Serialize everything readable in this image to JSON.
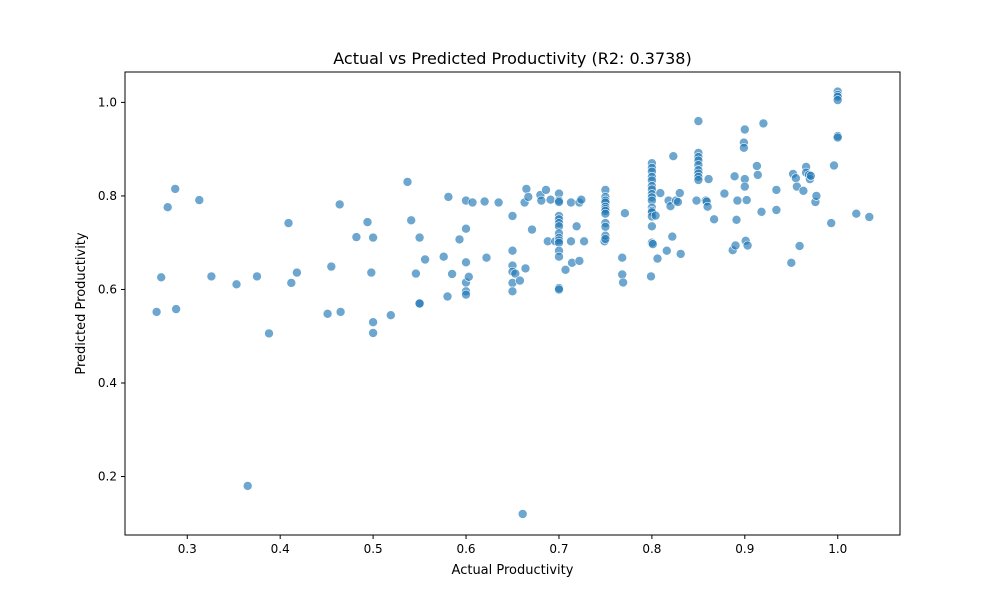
{
  "chart_data": {
    "type": "scatter",
    "title": "Actual vs Predicted Productivity (R2: 0.3738)",
    "xlabel": "Actual Productivity",
    "ylabel": "Predicted Productivity",
    "xlim": [
      0.233,
      1.067
    ],
    "ylim": [
      0.075,
      1.065
    ],
    "xticks": [
      0.3,
      0.4,
      0.5,
      0.6,
      0.7,
      0.8,
      0.9,
      1.0
    ],
    "xtick_labels": [
      "0.3",
      "0.4",
      "0.5",
      "0.6",
      "0.7",
      "0.8",
      "0.9",
      "1.0"
    ],
    "yticks": [
      0.2,
      0.4,
      0.6,
      0.8,
      1.0
    ],
    "ytick_labels": [
      "0.2",
      "0.4",
      "0.6",
      "0.8",
      "1.0"
    ],
    "grid": false,
    "marker_color": "#1f77b4",
    "marker_alpha": 0.65,
    "points": [
      [
        0.267,
        0.552
      ],
      [
        0.272,
        0.626
      ],
      [
        0.279,
        0.776
      ],
      [
        0.287,
        0.815
      ],
      [
        0.288,
        0.558
      ],
      [
        0.313,
        0.791
      ],
      [
        0.326,
        0.628
      ],
      [
        0.353,
        0.611
      ],
      [
        0.365,
        0.18
      ],
      [
        0.375,
        0.628
      ],
      [
        0.388,
        0.506
      ],
      [
        0.409,
        0.742
      ],
      [
        0.412,
        0.614
      ],
      [
        0.418,
        0.636
      ],
      [
        0.451,
        0.548
      ],
      [
        0.455,
        0.649
      ],
      [
        0.464,
        0.782
      ],
      [
        0.465,
        0.552
      ],
      [
        0.482,
        0.712
      ],
      [
        0.494,
        0.744
      ],
      [
        0.498,
        0.636
      ],
      [
        0.5,
        0.711
      ],
      [
        0.5,
        0.53
      ],
      [
        0.5,
        0.507
      ],
      [
        0.519,
        0.545
      ],
      [
        0.537,
        0.83
      ],
      [
        0.541,
        0.748
      ],
      [
        0.546,
        0.634
      ],
      [
        0.55,
        0.711
      ],
      [
        0.55,
        0.57
      ],
      [
        0.55,
        0.57
      ],
      [
        0.556,
        0.664
      ],
      [
        0.576,
        0.67
      ],
      [
        0.58,
        0.585
      ],
      [
        0.581,
        0.798
      ],
      [
        0.585,
        0.633
      ],
      [
        0.593,
        0.707
      ],
      [
        0.6,
        0.79
      ],
      [
        0.6,
        0.73
      ],
      [
        0.6,
        0.658
      ],
      [
        0.6,
        0.615
      ],
      [
        0.6,
        0.596
      ],
      [
        0.6,
        0.589
      ],
      [
        0.603,
        0.627
      ],
      [
        0.607,
        0.786
      ],
      [
        0.62,
        0.788
      ],
      [
        0.622,
        0.668
      ],
      [
        0.635,
        0.786
      ],
      [
        0.65,
        0.757
      ],
      [
        0.65,
        0.683
      ],
      [
        0.65,
        0.651
      ],
      [
        0.65,
        0.638
      ],
      [
        0.65,
        0.614
      ],
      [
        0.65,
        0.596
      ],
      [
        0.653,
        0.634
      ],
      [
        0.658,
        0.619
      ],
      [
        0.661,
        0.12
      ],
      [
        0.663,
        0.786
      ],
      [
        0.664,
        0.645
      ],
      [
        0.665,
        0.815
      ],
      [
        0.667,
        0.798
      ],
      [
        0.671,
        0.728
      ],
      [
        0.68,
        0.802
      ],
      [
        0.681,
        0.79
      ],
      [
        0.686,
        0.813
      ],
      [
        0.688,
        0.703
      ],
      [
        0.691,
        0.792
      ],
      [
        0.696,
        0.703
      ],
      [
        0.7,
        0.805
      ],
      [
        0.7,
        0.79
      ],
      [
        0.7,
        0.787
      ],
      [
        0.7,
        0.757
      ],
      [
        0.7,
        0.75
      ],
      [
        0.7,
        0.742
      ],
      [
        0.7,
        0.735
      ],
      [
        0.7,
        0.72
      ],
      [
        0.7,
        0.71
      ],
      [
        0.7,
        0.705
      ],
      [
        0.7,
        0.7
      ],
      [
        0.7,
        0.683
      ],
      [
        0.7,
        0.67
      ],
      [
        0.7,
        0.603
      ],
      [
        0.7,
        0.6
      ],
      [
        0.707,
        0.642
      ],
      [
        0.713,
        0.786
      ],
      [
        0.713,
        0.703
      ],
      [
        0.714,
        0.657
      ],
      [
        0.719,
        0.735
      ],
      [
        0.722,
        0.661
      ],
      [
        0.722,
        0.786
      ],
      [
        0.724,
        0.792
      ],
      [
        0.727,
        0.703
      ],
      [
        0.749,
        0.703
      ],
      [
        0.75,
        0.813
      ],
      [
        0.75,
        0.798
      ],
      [
        0.75,
        0.79
      ],
      [
        0.75,
        0.786
      ],
      [
        0.75,
        0.777
      ],
      [
        0.75,
        0.772
      ],
      [
        0.75,
        0.768
      ],
      [
        0.75,
        0.762
      ],
      [
        0.75,
        0.742
      ],
      [
        0.75,
        0.734
      ],
      [
        0.75,
        0.715
      ],
      [
        0.75,
        0.708
      ],
      [
        0.768,
        0.668
      ],
      [
        0.768,
        0.632
      ],
      [
        0.769,
        0.615
      ],
      [
        0.771,
        0.763
      ],
      [
        0.799,
        0.628
      ],
      [
        0.8,
        0.87
      ],
      [
        0.8,
        0.86
      ],
      [
        0.8,
        0.852
      ],
      [
        0.8,
        0.841
      ],
      [
        0.8,
        0.833
      ],
      [
        0.8,
        0.821
      ],
      [
        0.8,
        0.814
      ],
      [
        0.8,
        0.804
      ],
      [
        0.8,
        0.797
      ],
      [
        0.8,
        0.79
      ],
      [
        0.8,
        0.775
      ],
      [
        0.8,
        0.768
      ],
      [
        0.8,
        0.765
      ],
      [
        0.8,
        0.756
      ],
      [
        0.8,
        0.735
      ],
      [
        0.8,
        0.7
      ],
      [
        0.801,
        0.697
      ],
      [
        0.804,
        0.758
      ],
      [
        0.806,
        0.666
      ],
      [
        0.809,
        0.806
      ],
      [
        0.816,
        0.683
      ],
      [
        0.818,
        0.79
      ],
      [
        0.82,
        0.778
      ],
      [
        0.822,
        0.713
      ],
      [
        0.823,
        0.885
      ],
      [
        0.826,
        0.79
      ],
      [
        0.828,
        0.787
      ],
      [
        0.83,
        0.806
      ],
      [
        0.831,
        0.676
      ],
      [
        0.848,
        0.79
      ],
      [
        0.85,
        0.96
      ],
      [
        0.85,
        0.892
      ],
      [
        0.85,
        0.883
      ],
      [
        0.85,
        0.876
      ],
      [
        0.85,
        0.866
      ],
      [
        0.85,
        0.855
      ],
      [
        0.85,
        0.848
      ],
      [
        0.85,
        0.841
      ],
      [
        0.85,
        0.834
      ],
      [
        0.858,
        0.79
      ],
      [
        0.859,
        0.788
      ],
      [
        0.86,
        0.777
      ],
      [
        0.861,
        0.836
      ],
      [
        0.867,
        0.75
      ],
      [
        0.878,
        0.805
      ],
      [
        0.887,
        0.684
      ],
      [
        0.889,
        0.842
      ],
      [
        0.89,
        0.694
      ],
      [
        0.891,
        0.749
      ],
      [
        0.892,
        0.79
      ],
      [
        0.899,
        0.914
      ],
      [
        0.899,
        0.903
      ],
      [
        0.9,
        0.836
      ],
      [
        0.9,
        0.82
      ],
      [
        0.9,
        0.942
      ],
      [
        0.901,
        0.704
      ],
      [
        0.902,
        0.791
      ],
      [
        0.903,
        0.694
      ],
      [
        0.913,
        0.864
      ],
      [
        0.914,
        0.845
      ],
      [
        0.918,
        0.766
      ],
      [
        0.92,
        0.955
      ],
      [
        0.934,
        0.813
      ],
      [
        0.934,
        0.77
      ],
      [
        0.95,
        0.657
      ],
      [
        0.952,
        0.847
      ],
      [
        0.955,
        0.838
      ],
      [
        0.956,
        0.82
      ],
      [
        0.959,
        0.693
      ],
      [
        0.963,
        0.811
      ],
      [
        0.966,
        0.862
      ],
      [
        0.966,
        0.85
      ],
      [
        0.969,
        0.845
      ],
      [
        0.97,
        0.836
      ],
      [
        0.971,
        0.843
      ],
      [
        0.976,
        0.787
      ],
      [
        0.977,
        0.8
      ],
      [
        0.993,
        0.742
      ],
      [
        0.996,
        0.865
      ],
      [
        1.0,
        1.023
      ],
      [
        1.0,
        1.016
      ],
      [
        1.0,
        1.012
      ],
      [
        1.0,
        1.005
      ],
      [
        1.0,
        0.928
      ],
      [
        1.0,
        0.925
      ],
      [
        1.02,
        0.762
      ],
      [
        1.034,
        0.755
      ]
    ]
  }
}
